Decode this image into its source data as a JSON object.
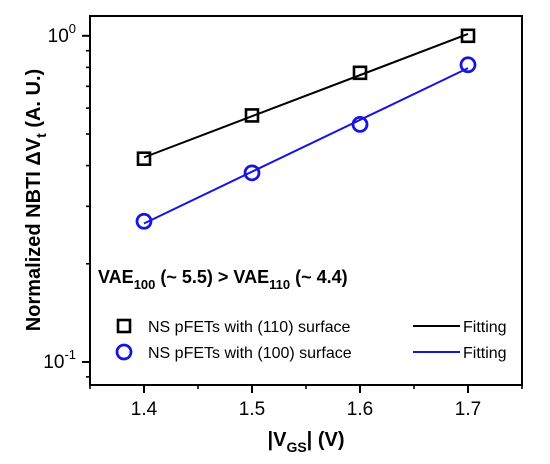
{
  "chart_data": {
    "type": "scatter",
    "xlabel_parts": [
      "|V",
      "GS",
      "| (V)"
    ],
    "ylabel_parts": [
      "Normalized NBTI ",
      "ΔV",
      "t",
      " (A. U.)"
    ],
    "x_ticks": [
      "1.4",
      "1.5",
      "1.6",
      "1.7"
    ],
    "y_scale": "log",
    "y_ticks": [
      {
        "base": "10",
        "exp": "0"
      },
      {
        "base": "10",
        "exp": "-1"
      }
    ],
    "xlim": [
      1.35,
      1.75
    ],
    "ylim": [
      0.085,
      1.15
    ],
    "grid": false,
    "legend_position": "bottom",
    "series": [
      {
        "name": "NS pFETs with (110) surface",
        "marker": "square",
        "color": "#000000",
        "fit_label": "Fitting",
        "x": [
          1.4,
          1.5,
          1.6,
          1.7
        ],
        "y": [
          0.42,
          0.57,
          0.77,
          1.0
        ]
      },
      {
        "name": "NS pFETs with (100) surface",
        "marker": "circle",
        "color": "#1515e0",
        "fit_label": "Fitting",
        "x": [
          1.4,
          1.5,
          1.6,
          1.7
        ],
        "y": [
          0.27,
          0.38,
          0.535,
          0.815
        ]
      }
    ],
    "annotation_parts": [
      "VAE",
      "100",
      " (~ 5.5) > VAE",
      "110",
      " (~ 4.4)"
    ]
  }
}
